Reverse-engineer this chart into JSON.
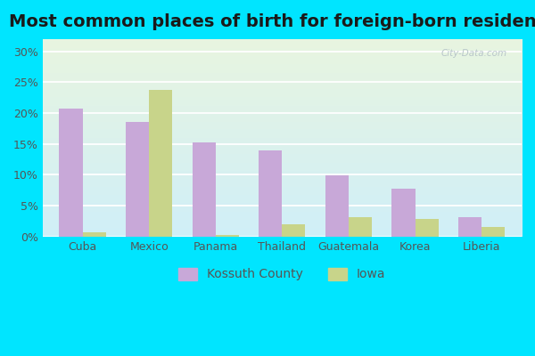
{
  "title": "Most common places of birth for foreign-born residents",
  "categories": [
    "Cuba",
    "Mexico",
    "Panama",
    "Thailand",
    "Guatemala",
    "Korea",
    "Liberia"
  ],
  "kossuth_values": [
    20.8,
    18.5,
    15.3,
    14.0,
    9.9,
    7.7,
    3.2
  ],
  "iowa_values": [
    0.7,
    23.7,
    0.3,
    2.0,
    3.1,
    2.9,
    1.5
  ],
  "kossuth_color": "#c8a8d8",
  "iowa_color": "#c8d48a",
  "background_outer": "#00e5ff",
  "bg_top": "#e8f5e0",
  "bg_bottom": "#d0eff8",
  "ylim": [
    0,
    32
  ],
  "yticks": [
    0,
    5,
    10,
    15,
    20,
    25,
    30
  ],
  "ytick_labels": [
    "0%",
    "5%",
    "10%",
    "15%",
    "20%",
    "25%",
    "30%"
  ],
  "legend_kossuth": "Kossuth County",
  "legend_iowa": "Iowa",
  "title_fontsize": 14,
  "watermark": "City-Data.com",
  "grid_color": "#ffffff",
  "tick_color": "#555555",
  "bar_width": 0.35
}
